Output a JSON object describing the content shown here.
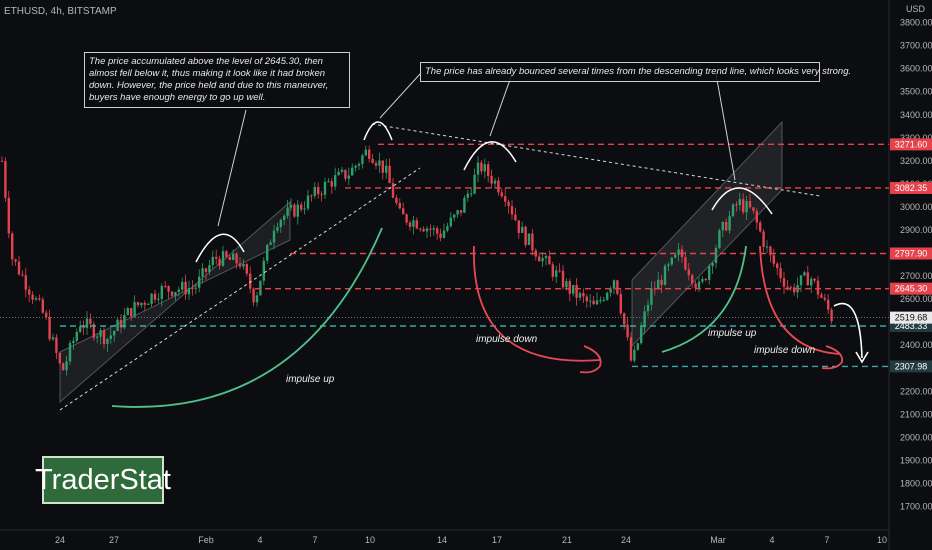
{
  "chart_data": {
    "type": "candlestick",
    "symbol": "ETHUSD, 4h, BITSTAMP",
    "currency": "USD",
    "ylim": [
      1650,
      3820
    ],
    "y_ticks": [
      "3800.00",
      "3700.00",
      "3600.00",
      "3500.00",
      "3400.00",
      "3300.00",
      "3200.00",
      "3100.00",
      "3000.00",
      "2900.00",
      "2800.00",
      "2700.00",
      "2600.00",
      "2500.00",
      "2400.00",
      "2300.00",
      "2200.00",
      "2100.00",
      "2000.00",
      "1900.00",
      "1800.00",
      "1700.00"
    ],
    "x_ticks": [
      "24",
      "27",
      "Feb",
      "4",
      "7",
      "10",
      "14",
      "17",
      "21",
      "24",
      "Mar",
      "4",
      "7",
      "10"
    ],
    "levels": [
      {
        "value": 3271.6,
        "label": "3271.60",
        "style": "red-dashed"
      },
      {
        "value": 3082.35,
        "label": "3082.35",
        "style": "red-dashed"
      },
      {
        "value": 2797.9,
        "label": "2797.90",
        "style": "red-dashed"
      },
      {
        "value": 2645.3,
        "label": "2645.30",
        "style": "red-dashed"
      },
      {
        "value": 2483.33,
        "label": "2483.33",
        "style": "teal-dashed"
      },
      {
        "value": 2307.98,
        "label": "2307.98",
        "style": "teal-dashed"
      }
    ],
    "current_price": {
      "value": 2519.68,
      "label": "2519.68"
    },
    "annotations": [
      "The price accumulated above the level of 2645.30, then almost fell below it, thus making it look like it had broken down. However, the price held and due to this maneuver, buyers have enough energy to go up well.",
      "The price has already bounced several times from the descending trend line, which looks very strong."
    ],
    "impulse_labels": [
      "impulse up",
      "impulse down",
      "impulse up",
      "impulse down"
    ]
  },
  "brand": "TraderStat",
  "colors": {
    "background": "#0c0d10",
    "bull": "#2e9e6b",
    "bear": "#e2434f",
    "level_red": "#e5424c",
    "level_teal": "#3aa7a7",
    "impulse_up": "#4fc28a",
    "impulse_down": "#e84a55"
  }
}
